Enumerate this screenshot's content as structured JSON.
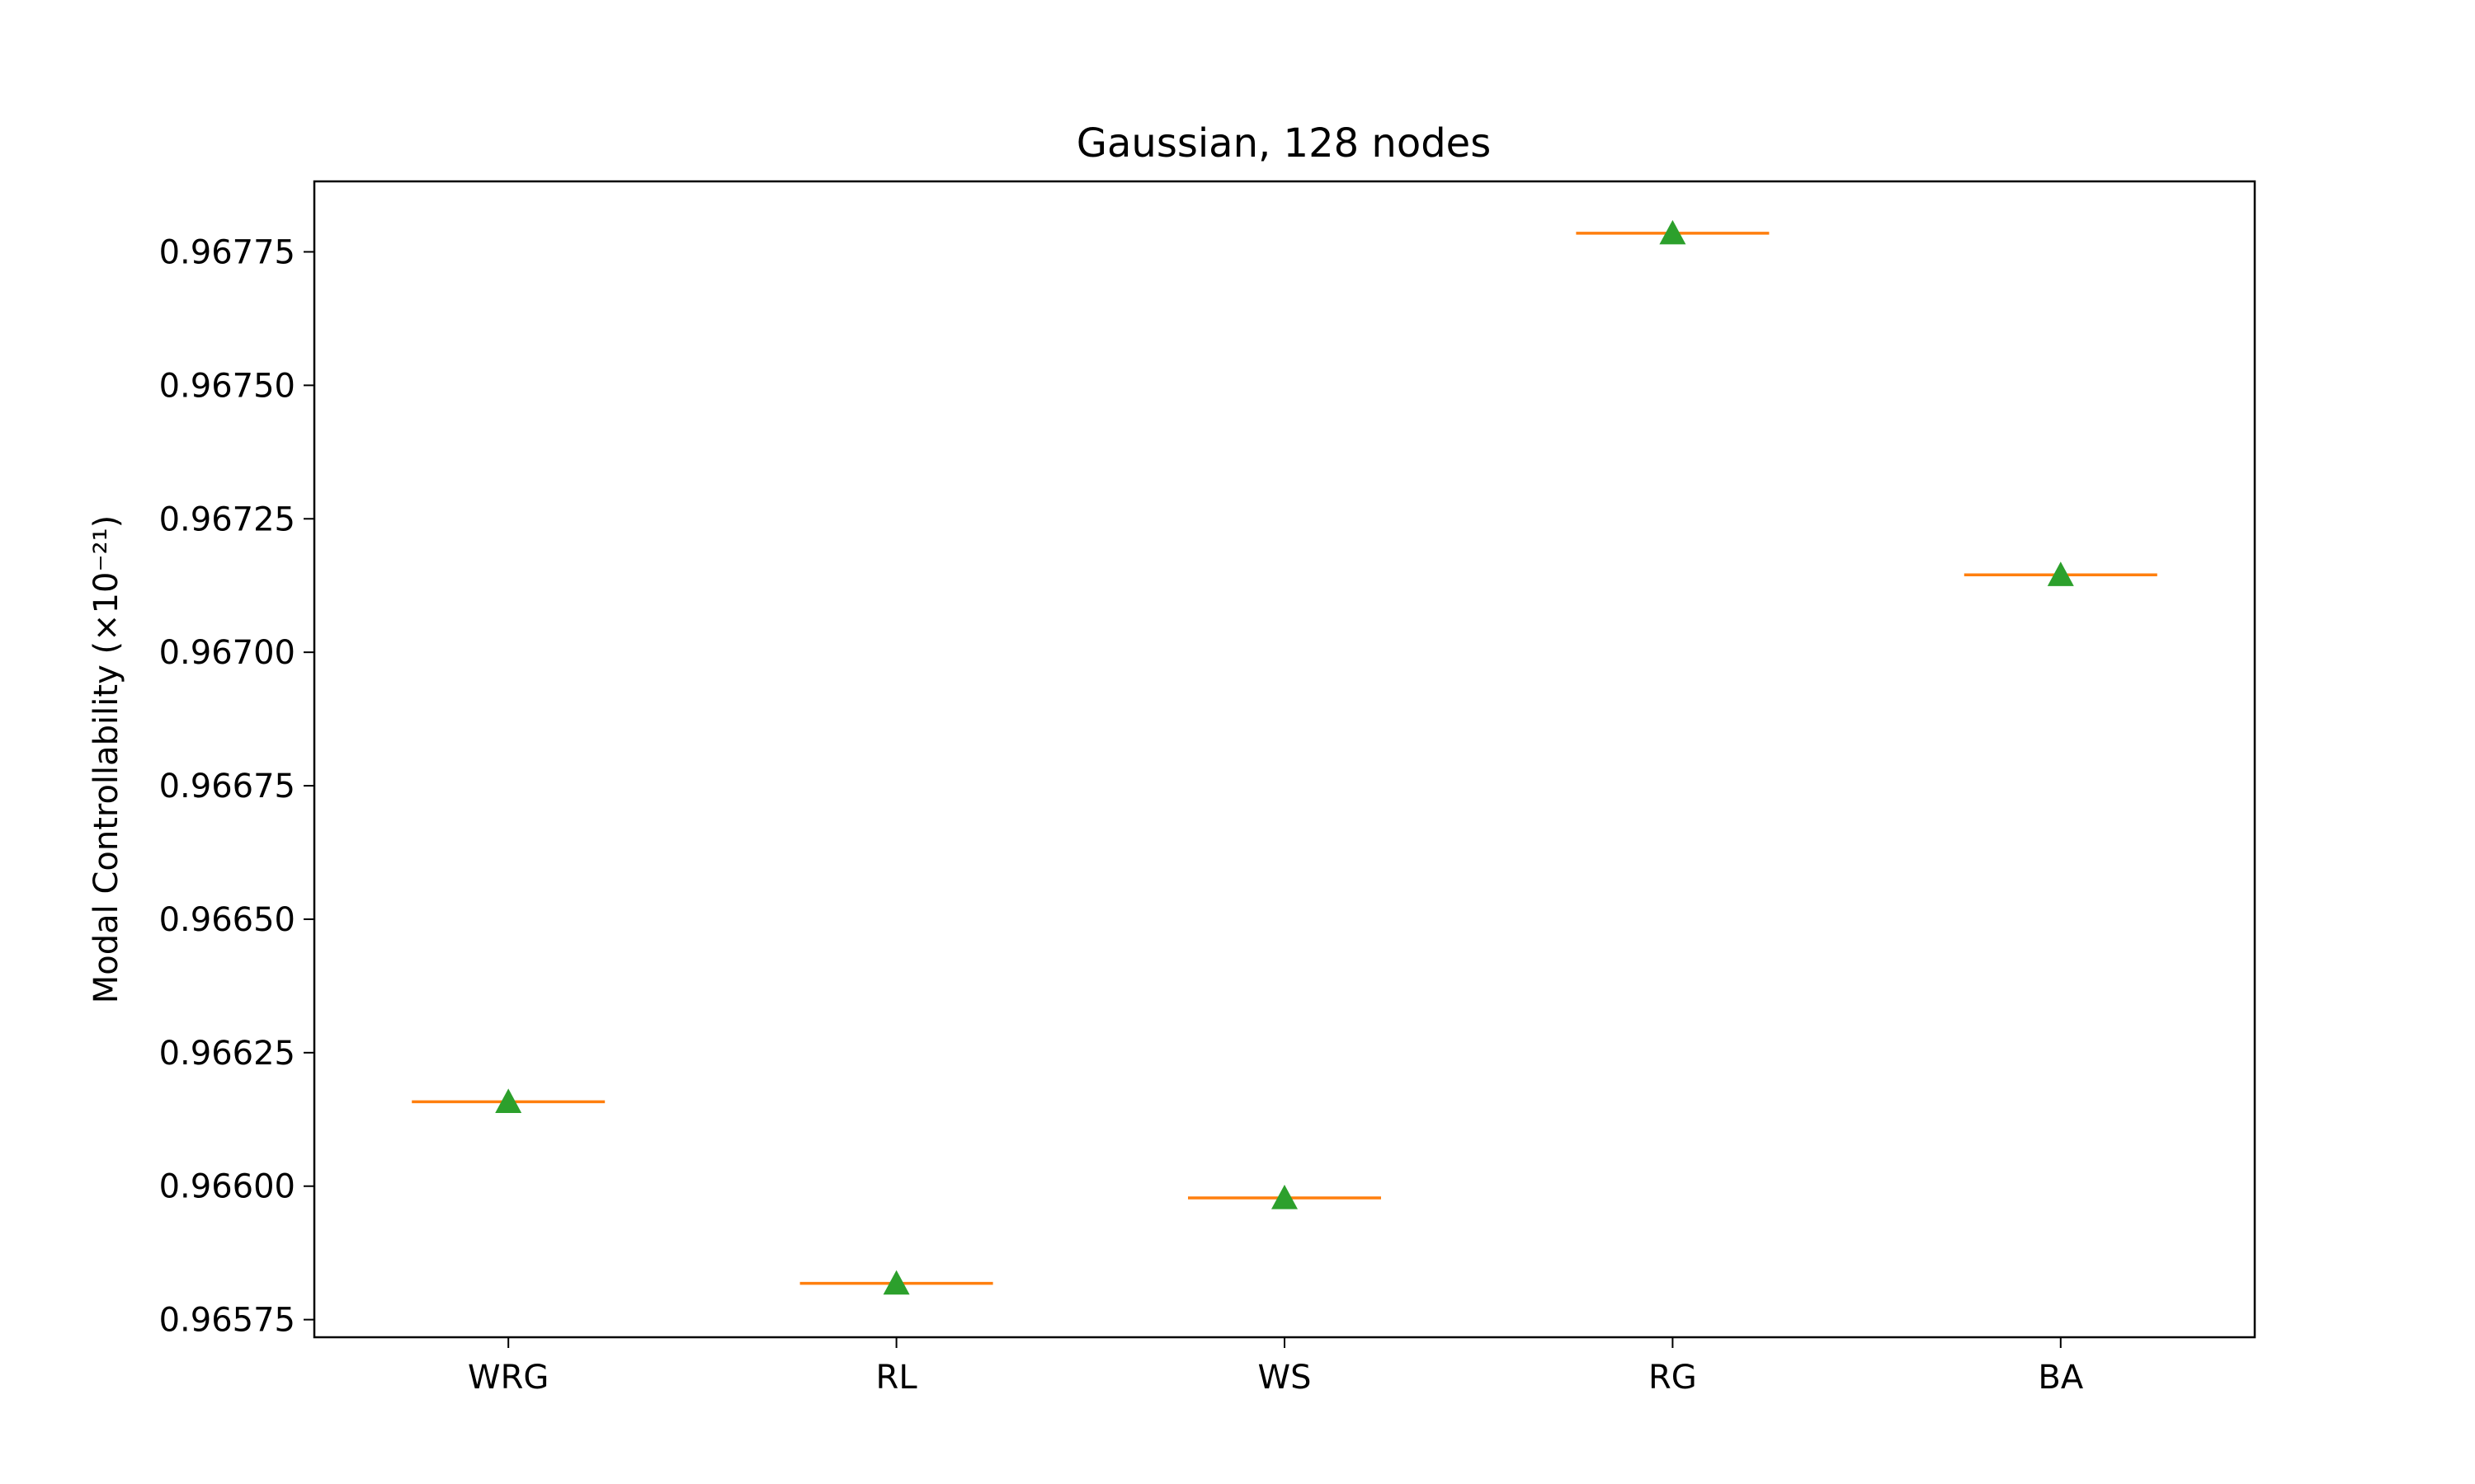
{
  "chart_data": {
    "type": "box",
    "title": "Gaussian, 128 nodes",
    "xlabel": "",
    "ylabel": "Modal Controllability (×10⁻²¹)",
    "categories": [
      "WRG",
      "RL",
      "WS",
      "RG",
      "BA"
    ],
    "medians": [
      0.966158,
      0.965818,
      0.965978,
      0.967785,
      0.967145
    ],
    "means": [
      0.966158,
      0.965818,
      0.965978,
      0.967785,
      0.967145
    ],
    "ylim": [
      0.965717,
      0.967882
    ],
    "yticks": [
      0.96575,
      0.966,
      0.96625,
      0.9665,
      0.96675,
      0.967,
      0.96725,
      0.9675,
      0.96775
    ],
    "ytick_labels": [
      "0.96575",
      "0.96600",
      "0.96625",
      "0.96650",
      "0.96675",
      "0.96700",
      "0.96725",
      "0.96750",
      "0.96775"
    ],
    "grid": false,
    "legend": "none",
    "colors": {
      "median": "#ff7f0e",
      "mean": "#2ca02c",
      "axes": "#000000"
    }
  }
}
